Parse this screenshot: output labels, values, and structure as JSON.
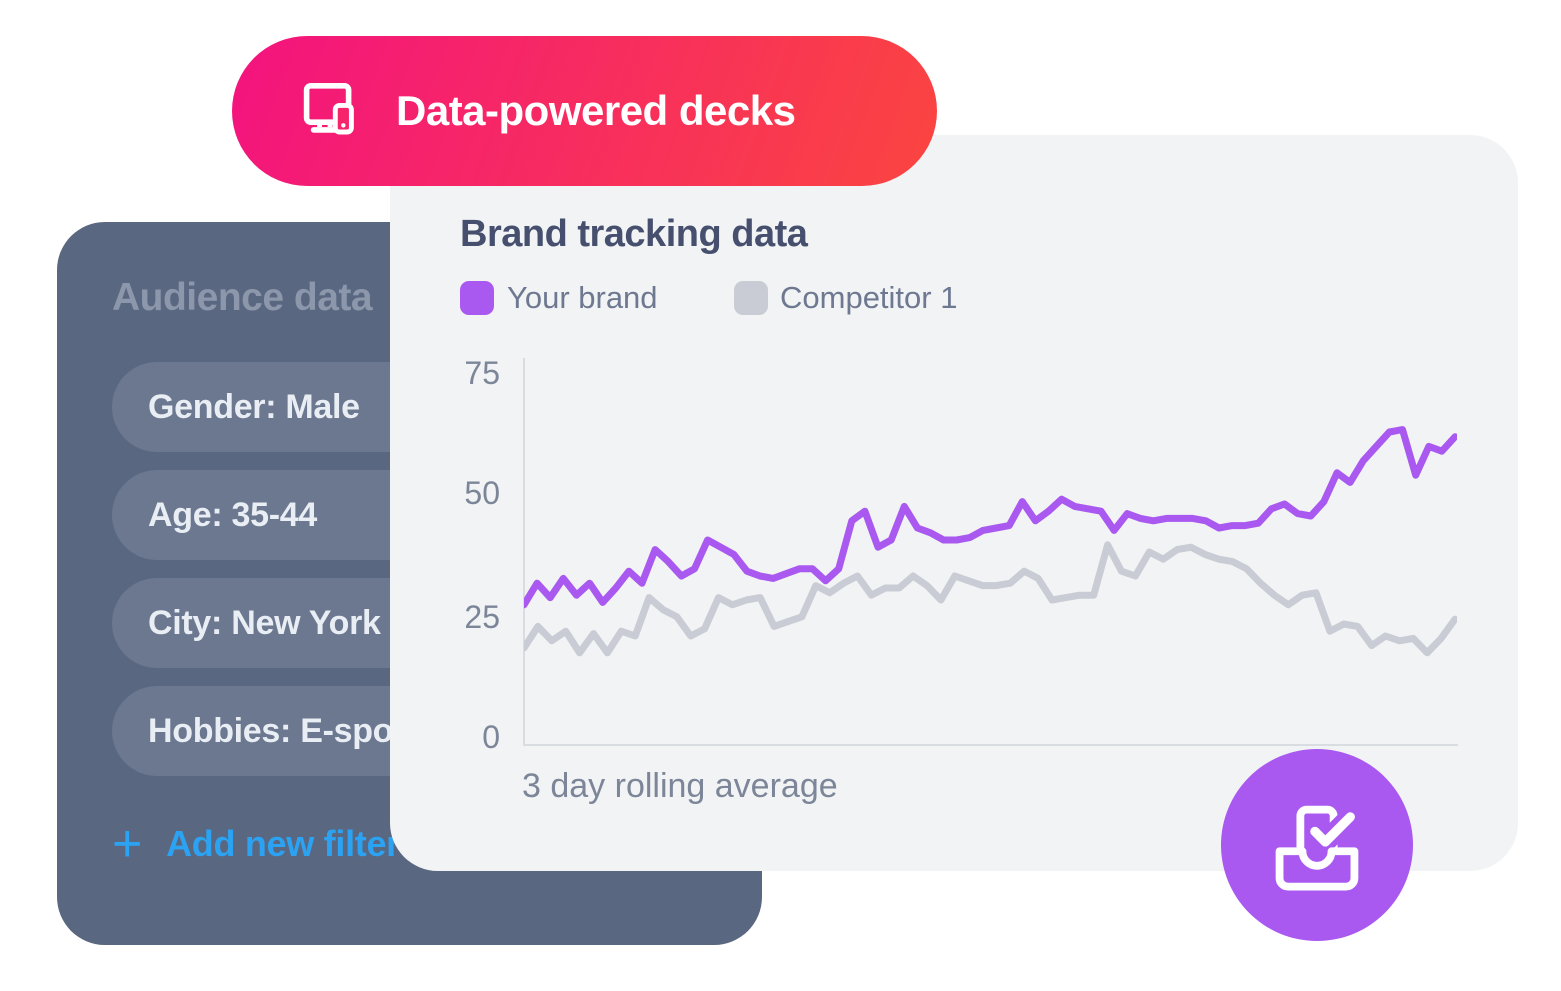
{
  "badge": {
    "label": "Data-powered decks",
    "icon": "devices-icon",
    "gradient_start": "#F3137F",
    "gradient_end": "#FB4540"
  },
  "audience_panel": {
    "title": "Audience data",
    "bg_color": "#5A6780",
    "pill_color": "#6B7890",
    "filters": [
      "Gender: Male",
      "Age: 35-44",
      "City: New York",
      "Hobbies: E-sports"
    ],
    "add_filter": {
      "icon": "plus-icon",
      "label": "Add new filter",
      "color": "#2BA2F2"
    }
  },
  "chart_panel": {
    "bg_color": "#F1F3F4",
    "title": "Brand tracking data",
    "caption": "3 day rolling average"
  },
  "chart_data": {
    "type": "line",
    "title": "Brand tracking data",
    "xlabel": "3 day rolling average",
    "ylabel": "",
    "yticks": [
      0,
      25,
      50,
      75
    ],
    "ylim": [
      0,
      80
    ],
    "grid": false,
    "x_tick_labels_visible": false,
    "legend_position": "top-left",
    "series": [
      {
        "name": "Your brand",
        "color": "#A958F0",
        "values": [
          26.5,
          31,
          28,
          32,
          28.5,
          31,
          27,
          30,
          33.5,
          31,
          38,
          35.5,
          32.5,
          34,
          40,
          38.5,
          37,
          33.5,
          32.5,
          32,
          33,
          34,
          34,
          31.5,
          34,
          44,
          46,
          38.5,
          40,
          47,
          42.5,
          41.5,
          40,
          40,
          40.5,
          42,
          42.5,
          43,
          48,
          44,
          46,
          48.5,
          47,
          46.5,
          46,
          42,
          45.5,
          44.5,
          44,
          44.5,
          44.5,
          44.5,
          44,
          42.5,
          43,
          43,
          43.5,
          46.5,
          47.5,
          45.5,
          45,
          48,
          54,
          52,
          56.5,
          59.5,
          62.5,
          63,
          53.5,
          59.5,
          58.5,
          61.5
        ]
      },
      {
        "name": "Competitor 1",
        "color": "#C9CCD4",
        "values": [
          17.5,
          22,
          19,
          21,
          16.5,
          20.5,
          16.5,
          21,
          20,
          28,
          25.5,
          24,
          20,
          21.5,
          28,
          26.5,
          27.5,
          28,
          22,
          23,
          24,
          30.5,
          29,
          31,
          32.5,
          28.5,
          30,
          30,
          32.5,
          30.5,
          27.5,
          32.5,
          31.5,
          30.5,
          30.5,
          31,
          33.5,
          32,
          27.5,
          28,
          28.5,
          28.5,
          39,
          33.5,
          32.5,
          37.5,
          36,
          38,
          38.5,
          37,
          36,
          35.5,
          34,
          31,
          28.5,
          26.5,
          28.5,
          29,
          21,
          22.5,
          22,
          18,
          20,
          19,
          19.5,
          16.5,
          19.5,
          23.5
        ]
      }
    ]
  },
  "export_button": {
    "icon": "inbox-check-icon",
    "color": "#A958F0"
  }
}
